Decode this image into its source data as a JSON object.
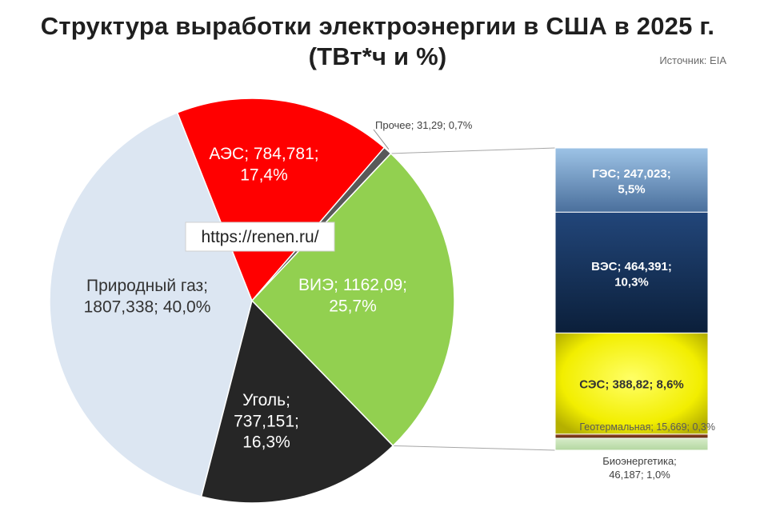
{
  "title_line1": "Структура выработки электроэнергии в США в 2025 г.",
  "title_line2": "(ТВт*ч и %)",
  "source": "Источник: EIA",
  "watermark": "https://renen.ru/",
  "chart_data": {
    "type": "pie",
    "title": "Структура выработки электроэнергии в США в 2025 г. (ТВт*ч и %)",
    "unit": "ТВт*ч",
    "slices": [
      {
        "name": "Природный газ",
        "value": 1807.338,
        "percent": 40.0,
        "color": "#dce6f2",
        "label_lines": [
          "Природный газ;",
          "1807,338; 40,0%"
        ]
      },
      {
        "name": "АЭС",
        "value": 784.781,
        "percent": 17.4,
        "color": "#ff0000",
        "label_lines": [
          "АЭС; 784,781;",
          "17,4%"
        ]
      },
      {
        "name": "Прочее",
        "value": 31.29,
        "percent": 0.7,
        "color": "#595959",
        "label_lines": [
          "Прочее; 31,29; 0,7%"
        ]
      },
      {
        "name": "ВИЭ",
        "value": 1162.09,
        "percent": 25.7,
        "color": "#92d050",
        "label_lines": [
          "ВИЭ; 1162,09;",
          "25,7%"
        ]
      },
      {
        "name": "Уголь",
        "value": 737.151,
        "percent": 16.3,
        "color": "#262626",
        "label_lines": [
          "Уголь;",
          "737,151;",
          "16,3%"
        ]
      }
    ],
    "breakdown": {
      "of": "ВИЭ",
      "items": [
        {
          "name": "ГЭС",
          "value": 247.023,
          "percent": 5.5,
          "color": "#8db3e2",
          "label_lines": [
            "ГЭС; 247,023;",
            "5,5%"
          ]
        },
        {
          "name": "ВЭС",
          "value": 464.391,
          "percent": 10.3,
          "color": "#17375e",
          "label_lines": [
            "ВЭС; 464,391;",
            "10,3%"
          ]
        },
        {
          "name": "СЭС",
          "value": 388.82,
          "percent": 8.6,
          "color": "#ffff00",
          "label_lines": [
            "СЭС; 388,82; 8,6%"
          ]
        },
        {
          "name": "Геотермальная",
          "value": 15.669,
          "percent": 0.3,
          "color": "#7f3f1f",
          "label_lines": [
            "Геотермальная; 15,669; 0,3%"
          ]
        },
        {
          "name": "Биоэнергетика",
          "value": 46.187,
          "percent": 1.0,
          "color": "#c3e0b4",
          "label_lines": [
            "Биоэнергетика;",
            "46,187; 1,0%"
          ]
        }
      ]
    }
  }
}
